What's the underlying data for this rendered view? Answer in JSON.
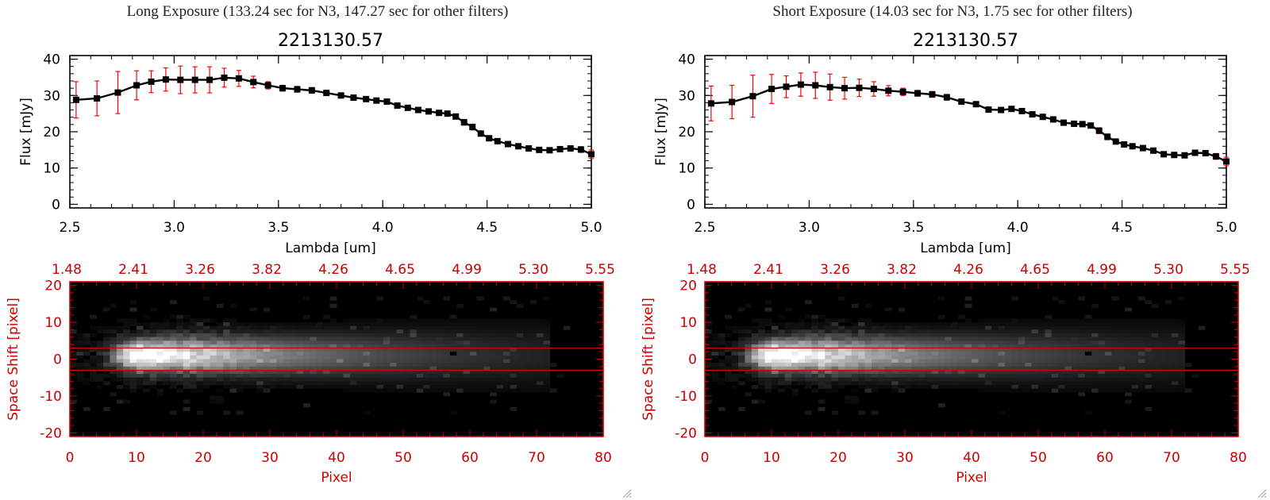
{
  "panels": [
    {
      "title": "Long Exposure (133.24 sec for N3, 147.27 sec for other filters)",
      "chart_data": [
        {
          "type": "line",
          "title": "2213130.57",
          "xlabel": "Lambda [um]",
          "ylabel": "Flux [mJy]",
          "xlim": [
            2.5,
            5.0
          ],
          "ylim": [
            -1,
            41
          ],
          "xticks": [
            "2.5",
            "3.0",
            "3.5",
            "4.0",
            "4.5",
            "5.0"
          ],
          "yticks": [
            "0",
            "10",
            "20",
            "30",
            "40"
          ],
          "series": [
            {
              "x": [
                2.53,
                2.63,
                2.73,
                2.82,
                2.89,
                2.96,
                3.03,
                3.1,
                3.17,
                3.24,
                3.31,
                3.38,
                3.45,
                3.52,
                3.59,
                3.66,
                3.73,
                3.8,
                3.86,
                3.92,
                3.97,
                4.02,
                4.07,
                4.12,
                4.17,
                4.22,
                4.27,
                4.31,
                4.35,
                4.39,
                4.43,
                4.47,
                4.51,
                4.55,
                4.6,
                4.65,
                4.7,
                4.75,
                4.8,
                4.85,
                4.9,
                4.95,
                5.0
              ],
              "y": [
                28.8,
                29.2,
                30.8,
                32.8,
                33.8,
                34.4,
                34.3,
                34.3,
                34.3,
                34.9,
                34.7,
                33.7,
                32.8,
                32.0,
                31.7,
                31.4,
                30.7,
                30.0,
                29.4,
                29.0,
                28.6,
                28.3,
                27.2,
                26.6,
                26.0,
                25.6,
                25.2,
                25.0,
                24.2,
                22.6,
                21.3,
                19.5,
                18.2,
                17.4,
                16.6,
                16.0,
                15.4,
                15.0,
                14.9,
                15.2,
                15.4,
                15.1,
                13.8
              ],
              "err": [
                5.0,
                4.8,
                5.8,
                4.0,
                3.0,
                3.2,
                3.8,
                3.6,
                3.6,
                2.6,
                2.2,
                1.6,
                1.0,
                0.8,
                0.8,
                0.8,
                0.6,
                0.6,
                0.6,
                0.6,
                0.6,
                0.6,
                0.6,
                0.6,
                0.6,
                0.6,
                0.6,
                0.6,
                0.6,
                0.8,
                0.8,
                0.6,
                0.6,
                0.6,
                0.6,
                0.6,
                0.6,
                0.6,
                0.6,
                0.6,
                0.6,
                0.8,
                1.2
              ]
            }
          ],
          "colors": {
            "line": "#000000",
            "error": "#ff0000",
            "marker": "#000000"
          }
        },
        {
          "type": "heatmap",
          "xlabel": "Pixel",
          "ylabel": "Space Shift [pixel]",
          "xlim": [
            0,
            80
          ],
          "ylim": [
            -21,
            21
          ],
          "xticks": [
            "0",
            "10",
            "20",
            "30",
            "40",
            "50",
            "60",
            "70",
            "80"
          ],
          "yticks": [
            "-20",
            "-10",
            "0",
            "10",
            "20"
          ],
          "top_ticks": [
            "1.48",
            "2.41",
            "3.26",
            "3.82",
            "4.26",
            "4.65",
            "4.99",
            "5.30",
            "5.55"
          ],
          "aperture_lines": [
            3,
            -3
          ],
          "peak_x": 10,
          "peak_y": 1,
          "colors": {
            "axis": "#cc0000",
            "aperture": "#cc0000"
          }
        }
      ]
    },
    {
      "title": "Short Exposure (14.03 sec for N3, 1.75 sec for other filters)",
      "chart_data": [
        {
          "type": "line",
          "title": "2213130.57",
          "xlabel": "Lambda [um]",
          "ylabel": "Flux [mJy]",
          "xlim": [
            2.5,
            5.0
          ],
          "ylim": [
            -1,
            41
          ],
          "xticks": [
            "2.5",
            "3.0",
            "3.5",
            "4.0",
            "4.5",
            "5.0"
          ],
          "yticks": [
            "0",
            "10",
            "20",
            "30",
            "40"
          ],
          "series": [
            {
              "x": [
                2.53,
                2.63,
                2.73,
                2.82,
                2.89,
                2.96,
                3.03,
                3.1,
                3.17,
                3.24,
                3.31,
                3.38,
                3.45,
                3.52,
                3.59,
                3.66,
                3.73,
                3.8,
                3.86,
                3.92,
                3.97,
                4.02,
                4.07,
                4.12,
                4.17,
                4.22,
                4.27,
                4.31,
                4.35,
                4.39,
                4.43,
                4.47,
                4.51,
                4.55,
                4.6,
                4.65,
                4.7,
                4.75,
                4.8,
                4.85,
                4.9,
                4.95,
                5.0
              ],
              "y": [
                27.8,
                28.2,
                29.8,
                31.8,
                32.4,
                33.0,
                32.8,
                32.3,
                32.0,
                32.1,
                31.8,
                31.3,
                31.0,
                30.6,
                30.3,
                29.5,
                28.3,
                27.6,
                26.1,
                26.0,
                26.3,
                25.7,
                24.8,
                24.1,
                23.4,
                22.5,
                22.2,
                22.1,
                21.7,
                20.3,
                18.6,
                17.3,
                16.5,
                16.0,
                15.5,
                14.8,
                13.8,
                13.6,
                13.5,
                14.2,
                14.1,
                13.2,
                11.8
              ],
              "err": [
                4.8,
                4.6,
                5.8,
                4.0,
                3.0,
                3.2,
                3.6,
                3.6,
                3.0,
                2.4,
                2.0,
                1.4,
                1.0,
                0.8,
                0.8,
                0.8,
                0.6,
                0.6,
                0.6,
                0.6,
                0.6,
                0.6,
                0.6,
                0.6,
                0.6,
                0.6,
                0.6,
                0.6,
                0.6,
                0.8,
                0.8,
                0.6,
                0.6,
                0.6,
                0.6,
                0.6,
                0.6,
                0.6,
                0.6,
                0.6,
                0.6,
                0.8,
                1.2
              ]
            }
          ],
          "colors": {
            "line": "#000000",
            "error": "#ff0000",
            "marker": "#000000"
          }
        },
        {
          "type": "heatmap",
          "xlabel": "Pixel",
          "ylabel": "Space Shift [pixel]",
          "xlim": [
            0,
            80
          ],
          "ylim": [
            -21,
            21
          ],
          "xticks": [
            "0",
            "10",
            "20",
            "30",
            "40",
            "50",
            "60",
            "70",
            "80"
          ],
          "yticks": [
            "-20",
            "-10",
            "0",
            "10",
            "20"
          ],
          "top_ticks": [
            "1.48",
            "2.41",
            "3.26",
            "3.82",
            "4.26",
            "4.65",
            "4.99",
            "5.30",
            "5.55"
          ],
          "aperture_lines": [
            3,
            -3
          ],
          "peak_x": 10,
          "peak_y": 1,
          "colors": {
            "axis": "#cc0000",
            "aperture": "#cc0000"
          }
        }
      ]
    }
  ]
}
